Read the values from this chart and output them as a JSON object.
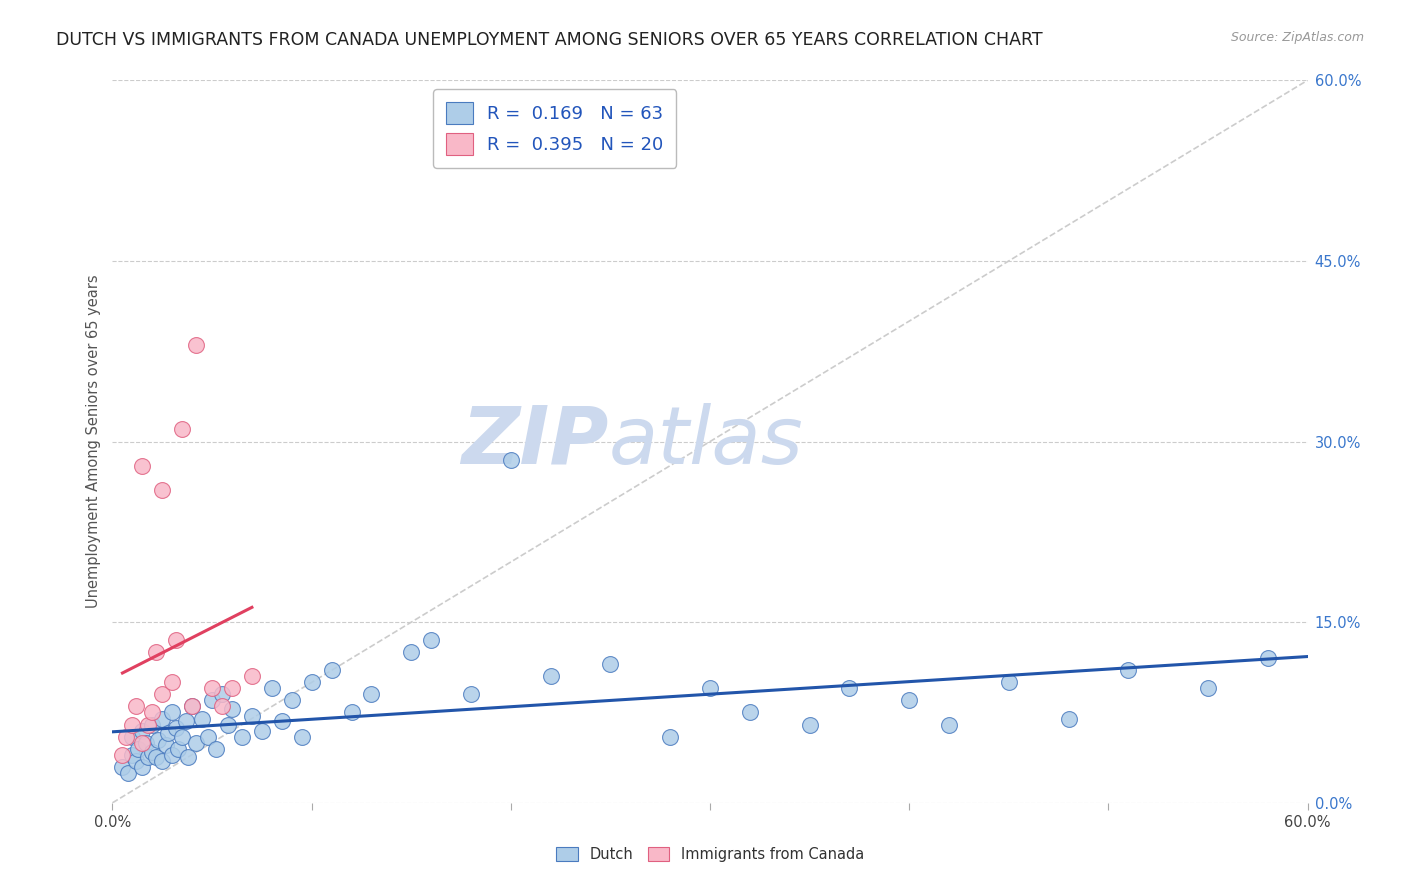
{
  "title": "DUTCH VS IMMIGRANTS FROM CANADA UNEMPLOYMENT AMONG SENIORS OVER 65 YEARS CORRELATION CHART",
  "source": "Source: ZipAtlas.com",
  "ylabel": "Unemployment Among Seniors over 65 years",
  "watermark_zip": "ZIP",
  "watermark_atlas": "atlas",
  "xlim": [
    0.0,
    0.6
  ],
  "ylim": [
    0.0,
    0.6
  ],
  "yticks_right": [
    0.0,
    0.15,
    0.3,
    0.45,
    0.6
  ],
  "dutch_color": "#aecde8",
  "dutch_edge_color": "#4a7bbf",
  "canada_color": "#f9b8c8",
  "canada_edge_color": "#e06080",
  "dutch_line_color": "#2255aa",
  "canada_line_color": "#e04060",
  "diagonal_color": "#cccccc",
  "R_dutch": 0.169,
  "N_dutch": 63,
  "R_canada": 0.395,
  "N_canada": 20,
  "dutch_x": [
    0.005,
    0.008,
    0.01,
    0.01,
    0.012,
    0.013,
    0.015,
    0.015,
    0.017,
    0.018,
    0.02,
    0.02,
    0.022,
    0.023,
    0.025,
    0.025,
    0.027,
    0.028,
    0.03,
    0.03,
    0.032,
    0.033,
    0.035,
    0.037,
    0.038,
    0.04,
    0.042,
    0.045,
    0.048,
    0.05,
    0.052,
    0.055,
    0.058,
    0.06,
    0.065,
    0.07,
    0.075,
    0.08,
    0.085,
    0.09,
    0.095,
    0.1,
    0.11,
    0.12,
    0.13,
    0.15,
    0.16,
    0.18,
    0.2,
    0.22,
    0.25,
    0.28,
    0.3,
    0.32,
    0.35,
    0.37,
    0.4,
    0.42,
    0.45,
    0.48,
    0.51,
    0.55,
    0.58
  ],
  "dutch_y": [
    0.03,
    0.025,
    0.04,
    0.055,
    0.035,
    0.045,
    0.06,
    0.03,
    0.05,
    0.038,
    0.065,
    0.042,
    0.038,
    0.052,
    0.07,
    0.035,
    0.048,
    0.058,
    0.075,
    0.04,
    0.062,
    0.045,
    0.055,
    0.068,
    0.038,
    0.08,
    0.05,
    0.07,
    0.055,
    0.085,
    0.045,
    0.09,
    0.065,
    0.078,
    0.055,
    0.072,
    0.06,
    0.095,
    0.068,
    0.085,
    0.055,
    0.1,
    0.11,
    0.075,
    0.09,
    0.125,
    0.135,
    0.09,
    0.285,
    0.105,
    0.115,
    0.055,
    0.095,
    0.075,
    0.065,
    0.095,
    0.085,
    0.065,
    0.1,
    0.07,
    0.11,
    0.095,
    0.12
  ],
  "canada_x": [
    0.005,
    0.007,
    0.01,
    0.012,
    0.015,
    0.015,
    0.018,
    0.02,
    0.022,
    0.025,
    0.025,
    0.03,
    0.032,
    0.035,
    0.04,
    0.042,
    0.05,
    0.055,
    0.06,
    0.07
  ],
  "canada_y": [
    0.04,
    0.055,
    0.065,
    0.08,
    0.05,
    0.28,
    0.065,
    0.075,
    0.125,
    0.09,
    0.26,
    0.1,
    0.135,
    0.31,
    0.08,
    0.38,
    0.095,
    0.08,
    0.095,
    0.105
  ],
  "background_color": "#ffffff",
  "grid_color": "#cccccc",
  "title_fontsize": 12.5,
  "label_fontsize": 10.5,
  "tick_fontsize": 10.5,
  "legend_fontsize": 13,
  "watermark_fontsize_zip": 58,
  "watermark_fontsize_atlas": 58,
  "watermark_color": "#ccd9ee",
  "source_color": "#999999"
}
